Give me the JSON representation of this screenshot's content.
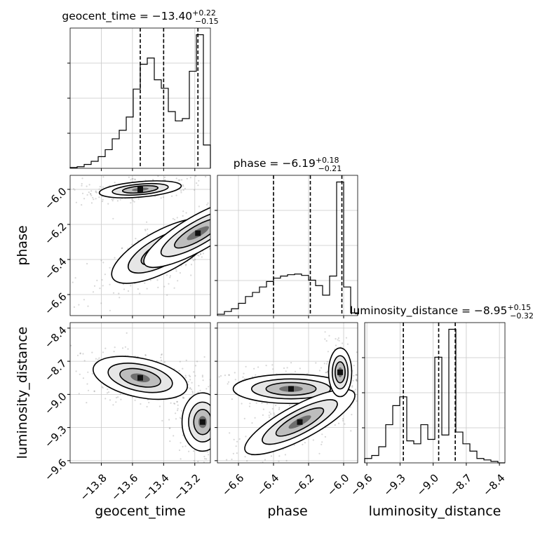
{
  "chart_data": {
    "type": "corner",
    "parameters": [
      "geocent_time",
      "phase",
      "luminosity_distance"
    ],
    "titles": [
      {
        "main": "geocent_time = −13.40",
        "sup": "+0.22",
        "sub": "−0.15"
      },
      {
        "main": "phase = −6.19",
        "sup": "+0.18",
        "sub": "−0.21"
      },
      {
        "main": "luminosity_distance = −8.95",
        "sup": "+0.15",
        "sub": "−0.32"
      }
    ],
    "quantiles": [
      [
        -13.55,
        -13.4,
        -13.18
      ],
      [
        -6.4,
        -6.19,
        -6.01
      ],
      [
        -9.27,
        -8.95,
        -8.8
      ]
    ],
    "ranges": [
      [
        -14.0,
        -13.1
      ],
      [
        -6.72,
        -5.92
      ],
      [
        -9.62,
        -8.35
      ]
    ],
    "ticks": [
      [
        -13.8,
        -13.6,
        -13.4,
        -13.2
      ],
      [
        -6.6,
        -6.4,
        -6.2,
        -6.0
      ],
      [
        -9.6,
        -9.3,
        -9.0,
        -8.7,
        -8.4
      ]
    ],
    "tick_labels": [
      [
        "−13.8",
        "−13.6",
        "−13.4",
        "−13.2"
      ],
      [
        "−6.6",
        "−6.4",
        "−6.2",
        "−6.0"
      ],
      [
        "−9.6",
        "−9.3",
        "−9.0",
        "−8.7",
        "−8.4"
      ]
    ],
    "y_tick_labels_row1": [
      "−6.0",
      "−6.2",
      "−6.4",
      "−6.6"
    ],
    "y_tick_labels_row2": [
      "−8.4",
      "−8.7",
      "−9.0",
      "−9.3",
      "−9.6"
    ],
    "histograms": [
      {
        "param": "geocent_time",
        "edges": [
          -14.0,
          -13.955,
          -13.91,
          -13.865,
          -13.82,
          -13.775,
          -13.73,
          -13.685,
          -13.64,
          -13.595,
          -13.55,
          -13.505,
          -13.46,
          -13.415,
          -13.37,
          -13.325,
          -13.28,
          -13.235,
          -13.19,
          -13.145,
          -13.1
        ],
        "counts": [
          0.5,
          1.0,
          2.5,
          4.5,
          7.5,
          12.0,
          19.0,
          24.5,
          33.0,
          51.0,
          67.0,
          71.0,
          57.0,
          51.5,
          36.5,
          30.5,
          32.0,
          62.5,
          86.0,
          15.0
        ]
      },
      {
        "param": "phase",
        "edges": [
          -6.72,
          -6.68,
          -6.64,
          -6.6,
          -6.56,
          -6.52,
          -6.48,
          -6.44,
          -6.4,
          -6.36,
          -6.32,
          -6.28,
          -6.24,
          -6.2,
          -6.16,
          -6.12,
          -6.08,
          -6.04,
          -6.0,
          -5.96,
          -5.92
        ],
        "counts": [
          1.0,
          3.0,
          5.0,
          9.0,
          14.0,
          17.0,
          21.0,
          25.0,
          27.5,
          29.0,
          30.0,
          30.5,
          29.5,
          26.0,
          22.0,
          15.0,
          29.0,
          98.0,
          21.0,
          2.0
        ]
      },
      {
        "param": "luminosity_distance",
        "edges": [
          -9.62,
          -9.5565,
          -9.493,
          -9.4295,
          -9.366,
          -9.3025,
          -9.239,
          -9.1755,
          -9.112,
          -9.0485,
          -8.985,
          -8.9215,
          -8.858,
          -8.7945,
          -8.731,
          -8.6675,
          -8.604,
          -8.5405,
          -8.477,
          -8.4135,
          -8.35
        ],
        "counts": [
          3.0,
          5.0,
          11.0,
          26.0,
          39.0,
          45.0,
          15.0,
          13.0,
          26.0,
          16.0,
          72.0,
          19.0,
          91.0,
          21.0,
          13.0,
          8.0,
          3.0,
          2.0,
          1.0,
          0.0
        ]
      }
    ],
    "grid": true
  },
  "labels": {
    "x_geocent_time": "geocent_time",
    "x_phase": "phase",
    "x_luminosity_distance": "luminosity_distance",
    "y_phase": "phase",
    "y_luminosity_distance": "luminosity_distance"
  }
}
